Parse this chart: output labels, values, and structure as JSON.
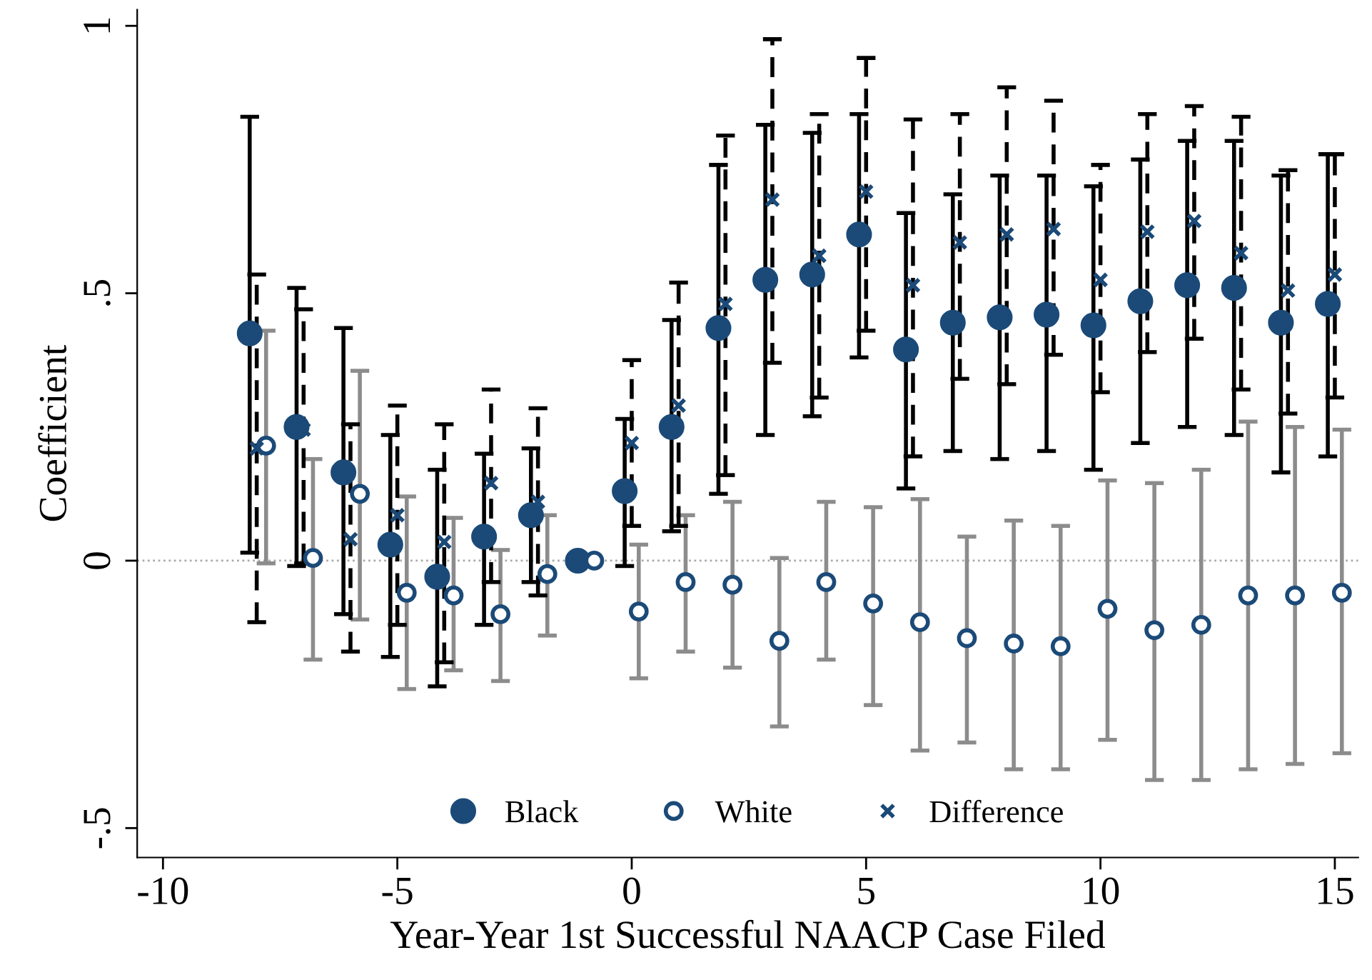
{
  "chart_data": {
    "type": "scatter",
    "xlabel": "Year-Year 1st Successful NAACP Case Filed",
    "ylabel": "Coefficient",
    "xlim": [
      -10.55,
      15.5
    ],
    "ylim": [
      -0.555,
      1.03
    ],
    "xticks": [
      -10,
      -5,
      0,
      5,
      10,
      15
    ],
    "yticks": [
      {
        "value": -0.5,
        "label": "-.5"
      },
      0,
      {
        "value": 0.5,
        "label": ".5"
      },
      1
    ],
    "grid": false,
    "legend": "bottom",
    "ref_lines": [
      {
        "axis": "y",
        "value": 0,
        "color": "#aaaaaa",
        "line_style": "dotted"
      }
    ],
    "series": [
      {
        "name": "Black",
        "color": "#1b4a78",
        "marker": "circle",
        "line_style": "solid",
        "x": [
          -8.15,
          -7.15,
          -6.15,
          -5.15,
          -4.15,
          -3.15,
          -2.15,
          -1.15,
          -0.15,
          0.85,
          1.85,
          2.85,
          3.85,
          4.85,
          5.85,
          6.85,
          7.85,
          8.85,
          9.85,
          10.85,
          11.85,
          12.85,
          13.85,
          14.85
        ],
        "values": [
          0.425,
          0.25,
          0.165,
          0.03,
          -0.03,
          0.045,
          0.085,
          0.0,
          0.13,
          0.25,
          0.435,
          0.525,
          0.535,
          0.61,
          0.395,
          0.445,
          0.455,
          0.46,
          0.44,
          0.485,
          0.515,
          0.51,
          0.445,
          0.48
        ],
        "errors": [
          [
            0.015,
            0.83
          ],
          [
            -0.01,
            0.51
          ],
          [
            -0.1,
            0.435
          ],
          [
            -0.18,
            0.235
          ],
          [
            -0.235,
            0.17
          ],
          [
            -0.12,
            0.2
          ],
          [
            -0.04,
            0.21
          ],
          null,
          [
            -0.01,
            0.265
          ],
          [
            0.055,
            0.45
          ],
          [
            0.125,
            0.74
          ],
          [
            0.235,
            0.815
          ],
          [
            0.27,
            0.8
          ],
          [
            0.38,
            0.835
          ],
          [
            0.135,
            0.65
          ],
          [
            0.205,
            0.685
          ],
          [
            0.19,
            0.72
          ],
          [
            0.205,
            0.72
          ],
          [
            0.17,
            0.7
          ],
          [
            0.22,
            0.75
          ],
          [
            0.25,
            0.785
          ],
          [
            0.235,
            0.785
          ],
          [
            0.165,
            0.72
          ],
          [
            0.195,
            0.76
          ]
        ]
      },
      {
        "name": "White",
        "color": "#1b4a78",
        "marker": "circle",
        "line_style": "solid",
        "x": [
          -7.8,
          -6.8,
          -5.8,
          -4.8,
          -3.8,
          -2.8,
          -1.8,
          -0.8,
          0.15,
          1.15,
          2.15,
          3.15,
          4.15,
          5.15,
          6.15,
          7.15,
          8.15,
          9.15,
          10.15,
          11.15,
          12.15,
          13.15,
          14.15,
          15.15
        ],
        "values": [
          0.215,
          0.005,
          0.125,
          -0.06,
          -0.065,
          -0.1,
          -0.025,
          0.0,
          -0.095,
          -0.04,
          -0.045,
          -0.15,
          -0.04,
          -0.08,
          -0.115,
          -0.145,
          -0.155,
          -0.16,
          -0.09,
          -0.13,
          -0.12,
          -0.065,
          -0.065,
          -0.06
        ],
        "errors": [
          [
            -0.005,
            0.43
          ],
          [
            -0.185,
            0.19
          ],
          [
            -0.11,
            0.355
          ],
          [
            -0.24,
            0.12
          ],
          [
            -0.205,
            0.08
          ],
          [
            -0.225,
            0.02
          ],
          [
            -0.14,
            0.085
          ],
          null,
          [
            -0.22,
            0.03
          ],
          [
            -0.17,
            0.085
          ],
          [
            -0.2,
            0.11
          ],
          [
            -0.31,
            0.005
          ],
          [
            -0.185,
            0.11
          ],
          [
            -0.27,
            0.1
          ],
          [
            -0.355,
            0.115
          ],
          [
            -0.34,
            0.045
          ],
          [
            -0.39,
            0.075
          ],
          [
            -0.39,
            0.065
          ],
          [
            -0.335,
            0.15
          ],
          [
            -0.41,
            0.145
          ],
          [
            -0.41,
            0.17
          ],
          [
            -0.39,
            0.26
          ],
          [
            -0.38,
            0.25
          ],
          [
            -0.36,
            0.245
          ]
        ]
      },
      {
        "name": "Difference",
        "color": "#1b4a78",
        "marker": "cross",
        "line_style": "dashed",
        "x": [
          -8,
          -7,
          -6,
          -5,
          -4,
          -3,
          -2,
          0,
          1,
          2,
          3,
          4,
          5,
          6,
          7,
          8,
          9,
          10,
          11,
          12,
          13,
          14,
          15
        ],
        "values": [
          0.21,
          0.245,
          0.04,
          0.085,
          0.035,
          0.145,
          0.11,
          0.22,
          0.29,
          0.48,
          0.675,
          0.57,
          0.69,
          0.515,
          0.595,
          0.61,
          0.62,
          0.525,
          0.615,
          0.635,
          0.575,
          0.505,
          0.535
        ],
        "errors": [
          [
            -0.115,
            0.535
          ],
          [
            -0.005,
            0.47
          ],
          [
            -0.17,
            0.255
          ],
          [
            -0.12,
            0.29
          ],
          [
            -0.19,
            0.255
          ],
          [
            -0.04,
            0.32
          ],
          [
            -0.065,
            0.285
          ],
          [
            0.065,
            0.375
          ],
          [
            0.065,
            0.52
          ],
          [
            0.16,
            0.795
          ],
          [
            0.37,
            0.975
          ],
          [
            0.305,
            0.835
          ],
          [
            0.43,
            0.94
          ],
          [
            0.195,
            0.825
          ],
          [
            0.34,
            0.835
          ],
          [
            0.33,
            0.885
          ],
          [
            0.385,
            0.86
          ],
          [
            0.315,
            0.74
          ],
          [
            0.39,
            0.835
          ],
          [
            0.415,
            0.85
          ],
          [
            0.32,
            0.83
          ],
          [
            0.275,
            0.73
          ],
          [
            0.305,
            0.76
          ]
        ]
      }
    ]
  }
}
